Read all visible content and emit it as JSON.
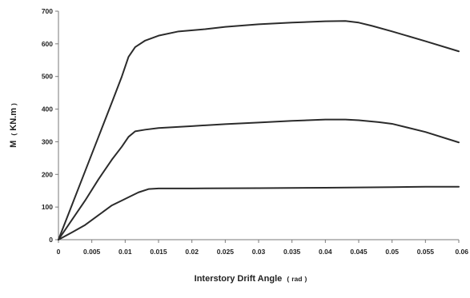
{
  "chart_data": {
    "type": "line",
    "title": "",
    "xlabel": "Interstory Drift Angle",
    "xlabel_unit": "rad",
    "ylabel": "M",
    "ylabel_unit": "KN.m",
    "xlim": [
      0,
      0.06
    ],
    "ylim": [
      0,
      700
    ],
    "x_ticks": [
      "0",
      "0.005",
      "0.01",
      "0.015",
      "0.02",
      "0.025",
      "0.03",
      "0.035",
      "0.04",
      "0.045",
      "0.05",
      "0.055",
      "0.06"
    ],
    "y_ticks": [
      "0",
      "100",
      "200",
      "300",
      "400",
      "500",
      "600",
      "700"
    ],
    "grid": false,
    "legend": "none",
    "line_color": "#2b2b2b",
    "series": [
      {
        "x": [
          0,
          0.002,
          0.004,
          0.006,
          0.008,
          0.0095,
          0.0105,
          0.0115,
          0.013,
          0.015,
          0.018,
          0.022,
          0.025,
          0.03,
          0.035,
          0.04,
          0.043,
          0.045,
          0.047,
          0.05,
          0.055,
          0.06
        ],
        "y": [
          0,
          105,
          210,
          315,
          420,
          500,
          560,
          590,
          610,
          625,
          638,
          645,
          652,
          660,
          665,
          669,
          670,
          665,
          655,
          638,
          608,
          577
        ]
      },
      {
        "x": [
          0,
          0.002,
          0.004,
          0.006,
          0.008,
          0.0095,
          0.0105,
          0.0115,
          0.013,
          0.015,
          0.02,
          0.025,
          0.03,
          0.035,
          0.04,
          0.043,
          0.045,
          0.048,
          0.05,
          0.055,
          0.06
        ],
        "y": [
          0,
          60,
          120,
          185,
          245,
          285,
          315,
          332,
          337,
          342,
          348,
          354,
          359,
          364,
          368,
          368,
          366,
          360,
          355,
          330,
          298
        ]
      },
      {
        "x": [
          0,
          0.002,
          0.004,
          0.006,
          0.008,
          0.0095,
          0.0105,
          0.012,
          0.0135,
          0.015,
          0.02,
          0.03,
          0.04,
          0.05,
          0.055,
          0.06
        ],
        "y": [
          0,
          22,
          45,
          75,
          105,
          120,
          130,
          145,
          155,
          157,
          157,
          158,
          159,
          161,
          162,
          162
        ]
      }
    ]
  }
}
